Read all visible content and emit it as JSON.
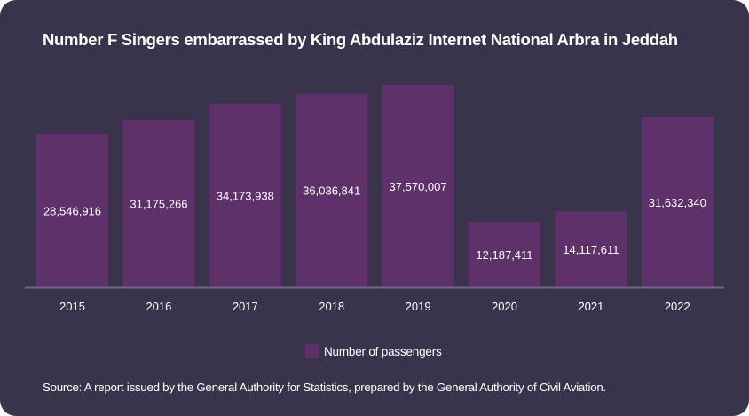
{
  "chart_data": {
    "type": "bar",
    "title": "Number F Singers embarrassed by King Abdulaziz Internet National Arbra in Jeddah",
    "categories": [
      "2015",
      "2016",
      "2017",
      "2018",
      "2019",
      "2020",
      "2021",
      "2022"
    ],
    "series": [
      {
        "name": "Number of passengers",
        "values": [
          28546916,
          31175266,
          34173938,
          36036841,
          37570007,
          12187411,
          14117611,
          31632340
        ],
        "labels": [
          "28,546,916",
          "31,175,266",
          "34,173,938",
          "36,036,841",
          "37,570,007",
          "12,187,411",
          "14,117,611",
          "31,632,340"
        ],
        "color": "#5f316b"
      }
    ],
    "xlabel": "",
    "ylabel": "",
    "ylim": [
      0,
      37570007
    ],
    "grid": false,
    "legend_position": "bottom-center",
    "source": "Source: A report issued by the General Authority for Statistics, prepared by the General Authority of Civil Aviation."
  },
  "colors": {
    "background": "#39344b",
    "bar": "#5f316b",
    "axis": "#6e6880",
    "text": "#ffffff"
  }
}
